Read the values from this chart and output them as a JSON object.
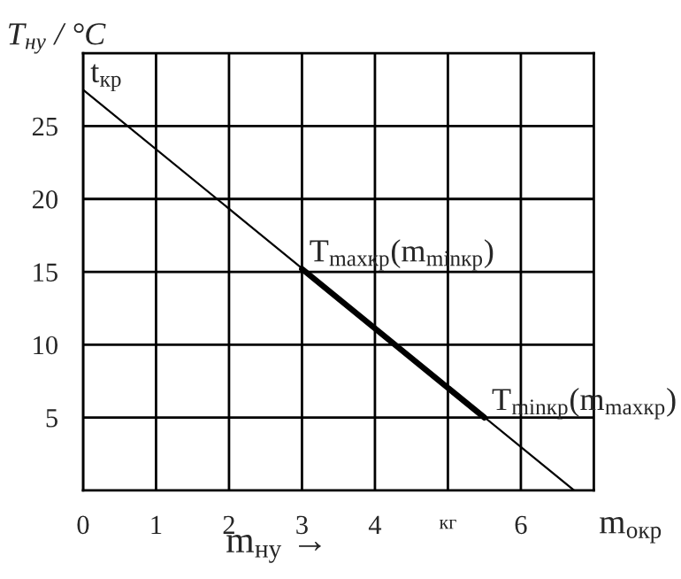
{
  "chart_data": {
    "type": "line",
    "ylabel": "T$_{ну}$ / °C",
    "xlabel": "m$_{ну}$ →",
    "x": [
      0,
      6.73
    ],
    "series": [
      {
        "color": "#000000",
        "values": [
          27.5,
          0
        ]
      },
      {
        "color": "#000000",
        "x": [
          3,
          5.5
        ],
        "values": [
          15.2,
          5.0
        ]
      }
    ],
    "xlim": [
      0,
      7
    ],
    "xticks": [
      0,
      1,
      2,
      3,
      4,
      {
        "value": 5,
        "label": "кг"
      },
      6
    ],
    "ylim": [
      0,
      30
    ],
    "yticks": [
      5,
      10,
      15,
      20,
      25
    ],
    "grid": true,
    "marker": "none",
    "line_style": "solid",
    "legend": false,
    "annotations": [
      {
        "text": "t$_{кр}$",
        "x": 0,
        "y": 27.5
      },
      {
        "text": "T$_{maxкр}$(m$_{minкр}$)",
        "x": 3,
        "y": 15.2
      },
      {
        "text": "T$_{minкр}$(m$_{maxкр}$)",
        "x": 5.5,
        "y": 5.0
      },
      "m$_{окр}$"
    ]
  }
}
